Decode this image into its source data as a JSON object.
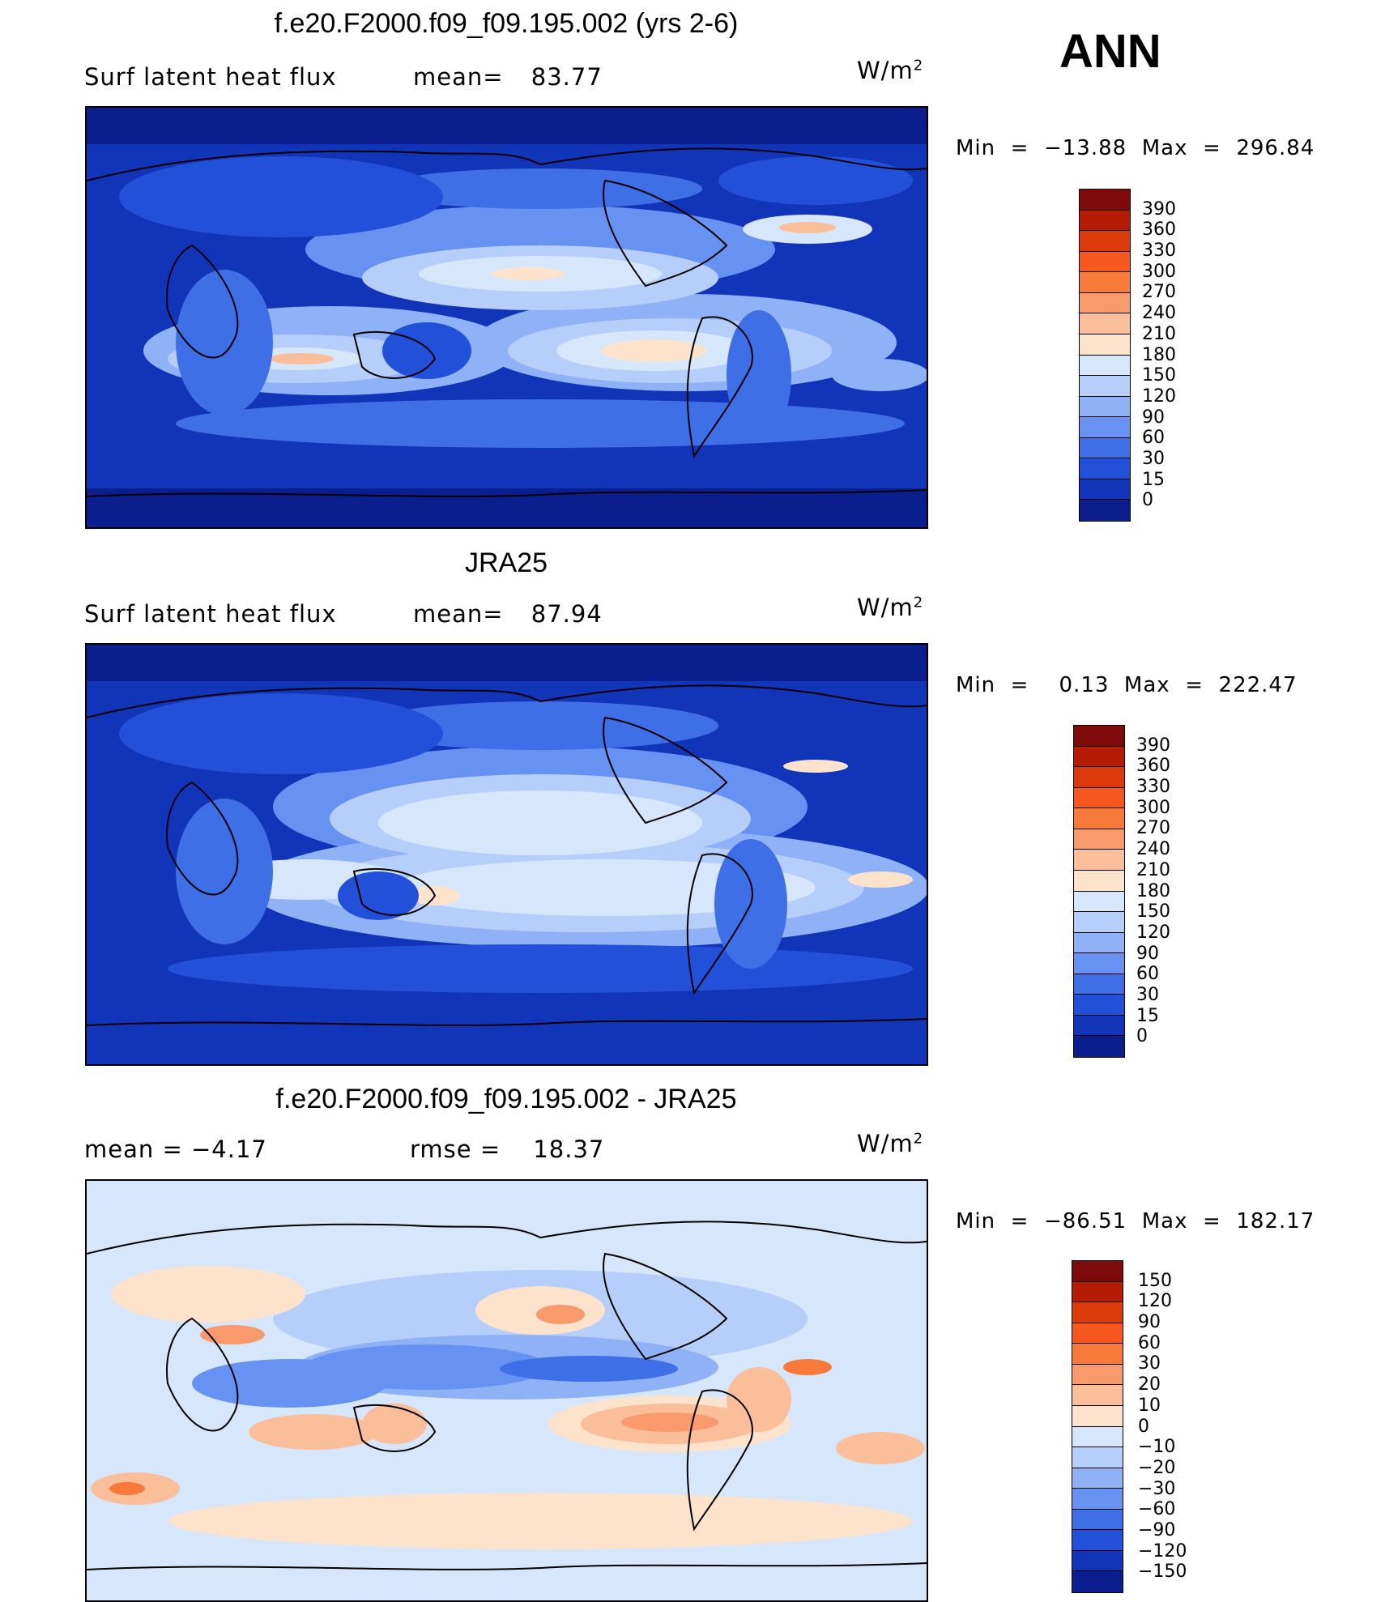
{
  "season": "ANN",
  "panels": [
    {
      "title": "f.e20.F2000.f09_f09.195.002 (yrs 2-6)",
      "left_label": "Surf  latent  heat  flux",
      "right_label_prefix": "mean=",
      "right_label_value": "83.77",
      "units_base": "W/m",
      "units_exp": "2",
      "minmax": "Min  =  −13.88  Max  =  296.84",
      "colorbar": {
        "labels": [
          "390",
          "360",
          "330",
          "300",
          "270",
          "240",
          "210",
          "180",
          "150",
          "120",
          "90",
          "60",
          "30",
          "15",
          "0"
        ],
        "colors": [
          "#7e0a0a",
          "#b51c06",
          "#dd3a0c",
          "#f5571d",
          "#f77a3b",
          "#f99a6c",
          "#fbbe9b",
          "#fde2cc",
          "#d6e7fb",
          "#b5cffa",
          "#8fb2f7",
          "#6892f2",
          "#3f6fe6",
          "#2250d8",
          "#1234b8",
          "#0a1e8e"
        ]
      },
      "chart_data": {
        "type": "heatmap",
        "title": "f.e20.F2000.f09_f09.195.002 (yrs 2-6)",
        "variable": "Surf latent heat flux",
        "units": "W/m2",
        "mean": 83.77,
        "min": -13.88,
        "max": 296.84,
        "levels": [
          0,
          15,
          30,
          60,
          90,
          120,
          150,
          180,
          210,
          240,
          270,
          300,
          330,
          360,
          390
        ]
      }
    },
    {
      "title": "JRA25",
      "left_label": "Surf  latent  heat  flux",
      "right_label_prefix": "mean=",
      "right_label_value": "87.94",
      "units_base": "W/m",
      "units_exp": "2",
      "minmax": "Min  =    0.13  Max  =  222.47",
      "colorbar": {
        "labels": [
          "390",
          "360",
          "330",
          "300",
          "270",
          "240",
          "210",
          "180",
          "150",
          "120",
          "90",
          "60",
          "30",
          "15",
          "0"
        ],
        "colors": [
          "#7e0a0a",
          "#b51c06",
          "#dd3a0c",
          "#f5571d",
          "#f77a3b",
          "#f99a6c",
          "#fbbe9b",
          "#fde2cc",
          "#d6e7fb",
          "#b5cffa",
          "#8fb2f7",
          "#6892f2",
          "#3f6fe6",
          "#2250d8",
          "#1234b8",
          "#0a1e8e"
        ]
      },
      "chart_data": {
        "type": "heatmap",
        "title": "JRA25",
        "variable": "Surf latent heat flux",
        "units": "W/m2",
        "mean": 87.94,
        "min": 0.13,
        "max": 222.47,
        "levels": [
          0,
          15,
          30,
          60,
          90,
          120,
          150,
          180,
          210,
          240,
          270,
          300,
          330,
          360,
          390
        ]
      }
    },
    {
      "title": "f.e20.F2000.f09_f09.195.002 - JRA25",
      "left_label": "mean  =     −4.17",
      "right_label_prefix": "rmse  =",
      "right_label_value": "18.37",
      "units_base": "W/m",
      "units_exp": "2",
      "minmax": "Min  =  −86.51  Max  =  182.17",
      "colorbar": {
        "labels": [
          "150",
          "120",
          "90",
          "60",
          "30",
          "20",
          "10",
          "0",
          "−10",
          "−20",
          "−30",
          "−60",
          "−90",
          "−120",
          "−150"
        ],
        "colors": [
          "#7e0a0a",
          "#b51c06",
          "#dd3a0c",
          "#f5571d",
          "#f77a3b",
          "#f99a6c",
          "#fbbe9b",
          "#fde2cc",
          "#d6e7fb",
          "#b5cffa",
          "#8fb2f7",
          "#6892f2",
          "#3f6fe6",
          "#2250d8",
          "#1234b8",
          "#0a1e8e"
        ]
      },
      "chart_data": {
        "type": "heatmap",
        "title": "f.e20.F2000.f09_f09.195.002 - JRA25",
        "variable": "Surf latent heat flux difference",
        "units": "W/m2",
        "mean": -4.17,
        "rmse": 18.37,
        "min": -86.51,
        "max": 182.17,
        "levels": [
          -150,
          -120,
          -90,
          -60,
          -30,
          -20,
          -10,
          0,
          10,
          20,
          30,
          60,
          90,
          120,
          150
        ]
      }
    }
  ]
}
